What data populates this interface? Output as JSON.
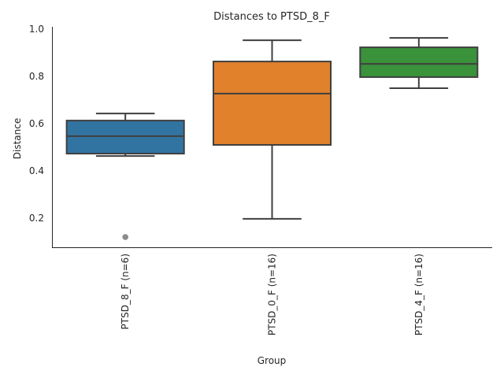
{
  "chart_data": {
    "type": "box",
    "title": "Distances to PTSD_8_F",
    "xlabel": "Group",
    "ylabel": "Distance",
    "ylim": [
      0.07,
      1.01
    ],
    "yticks": [
      "0.2",
      "0.4",
      "0.6",
      "0.8",
      "1.0"
    ],
    "ytick_values": [
      0.2,
      0.4,
      0.6,
      0.8,
      1.0
    ],
    "grid": false,
    "categories": [
      "PTSD_8_F (n=6)",
      "PTSD_0_F (n=16)",
      "PTSD_4_F (n=16)"
    ],
    "series": [
      {
        "name": "PTSD_8_F (n=6)",
        "color": "#3274a1",
        "whisker_low": 0.463,
        "q1": 0.473,
        "median": 0.547,
        "q3": 0.613,
        "whisker_high": 0.643,
        "outliers": [
          0.12
        ]
      },
      {
        "name": "PTSD_0_F (n=16)",
        "color": "#e1812c",
        "whisker_low": 0.197,
        "q1": 0.51,
        "median": 0.727,
        "q3": 0.863,
        "whisker_high": 0.953,
        "outliers": []
      },
      {
        "name": "PTSD_4_F (n=16)",
        "color": "#3a923a",
        "whisker_low": 0.75,
        "q1": 0.797,
        "median": 0.853,
        "q3": 0.923,
        "whisker_high": 0.963,
        "outliers": []
      }
    ],
    "line_color": "#3f3f3f",
    "outlier_color": "#8c8c8c"
  }
}
